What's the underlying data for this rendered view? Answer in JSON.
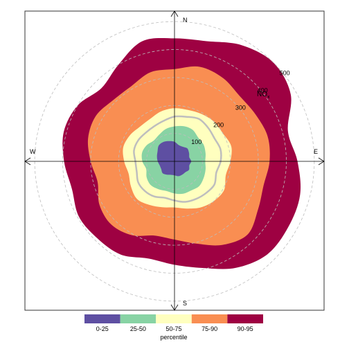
{
  "chart_data": {
    "type": "polar-percentile-rose",
    "pollutant_label": "NO",
    "pollutant_subscript": "x",
    "radial_ticks": [
      100,
      200,
      300,
      400,
      500
    ],
    "radial_max": 540,
    "directions": {
      "n": "N",
      "e": "E",
      "s": "S",
      "w": "W"
    },
    "angles_deg": [
      0,
      15,
      30,
      45,
      60,
      75,
      90,
      105,
      120,
      135,
      150,
      165,
      180,
      195,
      210,
      225,
      240,
      255,
      270,
      285,
      300,
      315,
      330,
      345
    ],
    "series": [
      {
        "name": "90-95",
        "color": "#9E0142",
        "r": [
          440,
          445,
          480,
          500,
          480,
          420,
          440,
          465,
          470,
          470,
          440,
          395,
          370,
          360,
          385,
          390,
          395,
          380,
          395,
          410,
          400,
          370,
          400,
          445
        ]
      },
      {
        "name": "75-90",
        "color": "#F98E52",
        "r": [
          330,
          350,
          345,
          330,
          335,
          345,
          340,
          330,
          345,
          370,
          345,
          305,
          280,
          275,
          305,
          320,
          310,
          285,
          300,
          320,
          325,
          310,
          310,
          330
        ]
      },
      {
        "name": "50-75",
        "color": "#FFFFBF",
        "r": [
          190,
          190,
          195,
          200,
          200,
          210,
          200,
          190,
          205,
          200,
          190,
          175,
          165,
          170,
          180,
          190,
          180,
          170,
          180,
          190,
          185,
          175,
          175,
          185
        ]
      },
      {
        "name": "25-50",
        "color": "#88D3A4",
        "r": [
          125,
          130,
          130,
          120,
          120,
          115,
          110,
          115,
          120,
          125,
          120,
          120,
          115,
          110,
          115,
          120,
          115,
          105,
          115,
          120,
          115,
          105,
          110,
          120
        ]
      },
      {
        "name": "0-25",
        "color": "#5E4FA2",
        "r": [
          70,
          60,
          60,
          65,
          60,
          55,
          60,
          55,
          60,
          55,
          55,
          55,
          50,
          50,
          55,
          60,
          55,
          55,
          60,
          65,
          70,
          80,
          80,
          75
        ]
      }
    ],
    "reference_line": {
      "color": "#BEBEBE",
      "r": [
        160,
        165,
        175,
        170,
        165,
        170,
        165,
        155,
        165,
        160,
        155,
        150,
        140,
        135,
        145,
        150,
        150,
        140,
        140,
        150,
        150,
        145,
        145,
        150
      ]
    },
    "legend": {
      "title": "percentile",
      "items": [
        {
          "label": "0-25",
          "color": "#5E4FA2"
        },
        {
          "label": "25-50",
          "color": "#88D3A4"
        },
        {
          "label": "50-75",
          "color": "#FFFFBF"
        },
        {
          "label": "75-90",
          "color": "#F98E52"
        },
        {
          "label": "90-95",
          "color": "#9E0142"
        }
      ]
    }
  }
}
